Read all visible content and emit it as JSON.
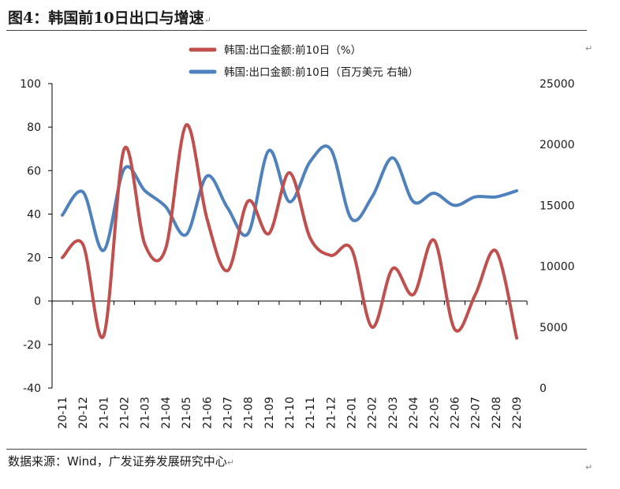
{
  "title": "图4：韩国前10日出口与增速",
  "source": "数据来源：Wind，广发证券发展研究中心",
  "return_mark": "↵",
  "chart_data": {
    "type": "line",
    "categories": [
      "20-11",
      "20-12",
      "21-01",
      "21-02",
      "21-03",
      "21-04",
      "21-05",
      "21-06",
      "21-07",
      "21-08",
      "21-09",
      "21-10",
      "21-11",
      "21-12",
      "22-01",
      "22-02",
      "22-03",
      "22-04",
      "22-05",
      "22-06",
      "22-07",
      "22-08",
      "22-09"
    ],
    "left_axis": {
      "ylim": [
        -40,
        100
      ],
      "ticks": [
        -40,
        -20,
        0,
        20,
        40,
        60,
        80,
        100
      ]
    },
    "right_axis": {
      "ylim": [
        0,
        25000
      ],
      "ticks": [
        0,
        5000,
        10000,
        15000,
        20000,
        25000
      ]
    },
    "series": [
      {
        "name": "韩国:出口金额:前10日（%）",
        "axis": "left",
        "color": "#c0504d",
        "values": [
          20,
          26,
          -16,
          70,
          26,
          24,
          81,
          38,
          14,
          46,
          31,
          59,
          29,
          21,
          24,
          -12,
          15,
          3,
          28,
          -13,
          3,
          23,
          -17
        ]
      },
      {
        "name": "韩国:出口金额:前10日（百万美元 右轴）",
        "axis": "right",
        "color": "#4f81bd",
        "values": [
          14200,
          16100,
          11300,
          18000,
          16200,
          14900,
          12600,
          17400,
          14800,
          12700,
          19500,
          15300,
          18600,
          19600,
          13900,
          15700,
          18900,
          15300,
          16000,
          15000,
          15700,
          15700,
          16200
        ]
      }
    ]
  }
}
